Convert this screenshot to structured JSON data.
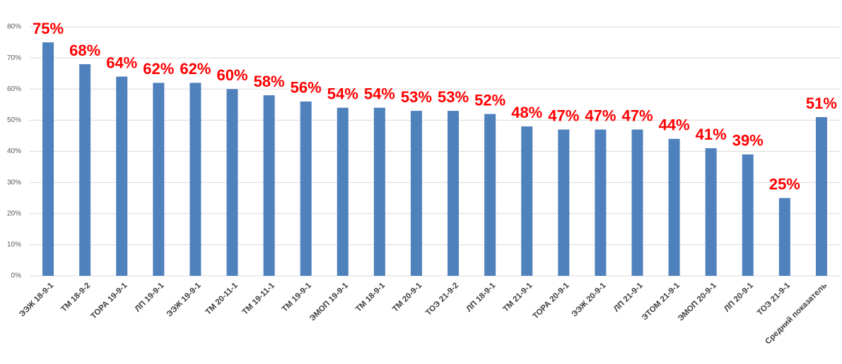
{
  "chart_data": {
    "type": "bar",
    "categories": [
      "ЭЭЖ 18-9-1",
      "ТМ 18-9-2",
      "ТОРА 19-9-1",
      "ЛП 19-9-1",
      "ЭЭЖ 19-9-1",
      "ТМ 20-11-1",
      "ТМ 19-11-1",
      "ТМ 19-9-1",
      "ЭМОП 19-9-1",
      "ТМ 18-9-1",
      "ТМ 20-9-1",
      "ТОЭ 21-9-2",
      "ЛП 18-9-1",
      "ТМ 21-9-1",
      "ТОРА 20-9-1",
      "ЭЭЖ 20-9-1",
      "ЛП 21-9-1",
      "ЭТОМ 21-9-1",
      "ЭМОП 20-9-1",
      "ЛП 20-9-1",
      "ТОЭ 21-9-1",
      "Средний показатель"
    ],
    "values": [
      75,
      68,
      64,
      62,
      62,
      60,
      58,
      56,
      54,
      54,
      53,
      53,
      52,
      48,
      47,
      47,
      47,
      44,
      41,
      39,
      25,
      51
    ],
    "value_labels": [
      "75%",
      "68%",
      "64%",
      "62%",
      "62%",
      "60%",
      "58%",
      "56%",
      "54%",
      "54%",
      "53%",
      "53%",
      "52%",
      "48%",
      "47%",
      "47%",
      "47%",
      "44%",
      "41%",
      "39%",
      "25%",
      "51%"
    ],
    "color": "#4f81bd",
    "ylim": [
      0,
      80
    ],
    "yticks": [
      {
        "value": 0,
        "label": "0%"
      },
      {
        "value": 10,
        "label": "10%"
      },
      {
        "value": 20,
        "label": "20%"
      },
      {
        "value": 30,
        "label": "30%"
      },
      {
        "value": 40,
        "label": "40%"
      },
      {
        "value": 50,
        "label": "50%"
      },
      {
        "value": 60,
        "label": "60%"
      },
      {
        "value": 70,
        "label": "70%"
      },
      {
        "value": 80,
        "label": "80%"
      }
    ],
    "grid": true
  }
}
